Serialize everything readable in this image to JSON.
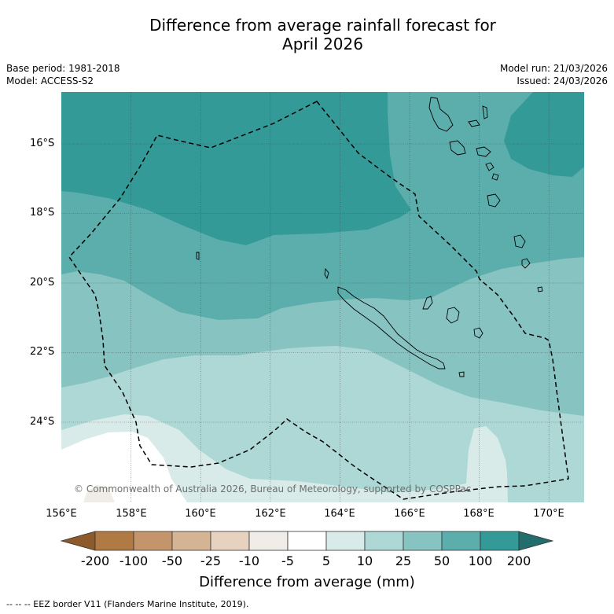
{
  "title_line1": "Difference from average rainfall forecast for",
  "title_line2": "April 2026",
  "base_period": "Base period: 1981-2018",
  "model": "Model: ACCESS-S2",
  "model_run": "Model run: 21/03/2026",
  "issued": "Issued: 24/03/2026",
  "lat_labels": [
    "16°S",
    "18°S",
    "20°S",
    "22°S",
    "24°S"
  ],
  "lon_labels": [
    "156°E",
    "158°E",
    "160°E",
    "162°E",
    "164°E",
    "166°E",
    "168°E",
    "170°E"
  ],
  "copyright": "© Commonwealth of Australia 2026, Bureau of Meteorology, supported by COSPPac",
  "colorbar": {
    "ticks": [
      "-200",
      "-100",
      "-50",
      "-25",
      "-10",
      "-5",
      "5",
      "10",
      "25",
      "50",
      "100",
      "200"
    ],
    "title": "Difference from average (mm)",
    "colors": {
      "below_200": "#8c5a2b",
      "n200_n100": "#b07a45",
      "n100_n50": "#c4956b",
      "n50_n25": "#d5b395",
      "n25_n10": "#e7d2c0",
      "n10_n5": "#f0ece8",
      "n5_p5": "#ffffff",
      "p5_p10": "#d8ebe9",
      "p10_p25": "#aed8d6",
      "p25_p50": "#86c3c1",
      "p50_p100": "#5caeac",
      "p100_p200": "#339a98",
      "above_200": "#236e6c"
    }
  },
  "legend_note": "--  --  -- EEZ border V11 (Flanders Marine Institute, 2019)."
}
